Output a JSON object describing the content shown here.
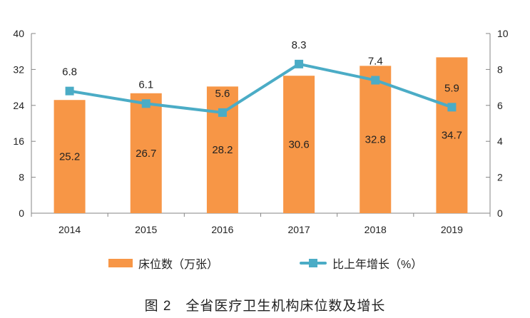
{
  "chart_data": {
    "type": "bar+line",
    "title": "图 2　全省医疗卫生机构床位数及增长",
    "categories": [
      "2014",
      "2015",
      "2016",
      "2017",
      "2018",
      "2019"
    ],
    "series": [
      {
        "name": "床位数（万张）",
        "type": "bar",
        "axis": "left",
        "color": "#F79646",
        "values": [
          25.2,
          26.7,
          28.2,
          30.6,
          32.8,
          34.7
        ],
        "labels": [
          "25.2",
          "26.7",
          "28.2",
          "30.6",
          "32.8",
          "34.7"
        ]
      },
      {
        "name": "比上年增长（%）",
        "type": "line",
        "axis": "right",
        "color": "#4BACC6",
        "values": [
          6.8,
          6.1,
          5.6,
          8.3,
          7.4,
          5.9
        ],
        "labels": [
          "6.8",
          "6.1",
          "5.6",
          "8.3",
          "7.4",
          "5.9"
        ]
      }
    ],
    "y_left": {
      "min": 0,
      "max": 40,
      "ticks": [
        "0",
        "8",
        "16",
        "24",
        "32",
        "40"
      ]
    },
    "y_right": {
      "min": 0,
      "max": 10,
      "ticks": [
        "0",
        "2",
        "4",
        "6",
        "8",
        "10"
      ]
    },
    "xlabel": "",
    "ylabel": "",
    "grid": false,
    "legend_position": "bottom"
  }
}
